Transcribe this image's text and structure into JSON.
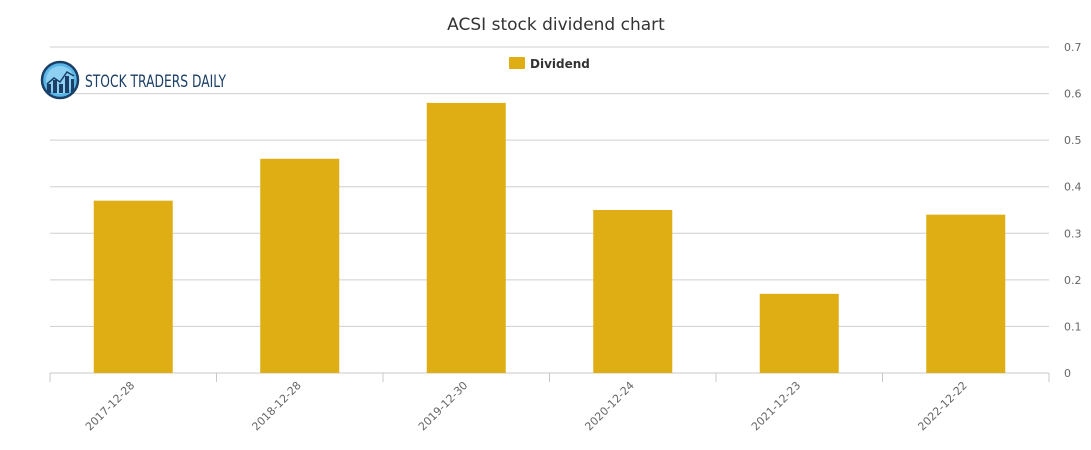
{
  "chart_data": {
    "type": "bar",
    "title": "ACSI stock dividend chart",
    "categories": [
      "2017-12-28",
      "2018-12-28",
      "2019-12-30",
      "2020-12-24",
      "2021-12-23",
      "2022-12-22"
    ],
    "series": [
      {
        "name": "Dividend",
        "values": [
          0.37,
          0.46,
          0.58,
          0.35,
          0.17,
          0.34
        ],
        "color": "#deae14"
      }
    ],
    "ylim": [
      0,
      0.7
    ],
    "yticks": [
      "0",
      "0.1",
      "0.2",
      "0.3",
      "0.4",
      "0.5",
      "0.6",
      "0.7"
    ],
    "y_axis_side": "right",
    "grid": true,
    "legend_position": "top-center"
  },
  "watermark": {
    "text": "STOCK TRADERS DAILY",
    "icon": "bar-chart-globe-icon"
  }
}
